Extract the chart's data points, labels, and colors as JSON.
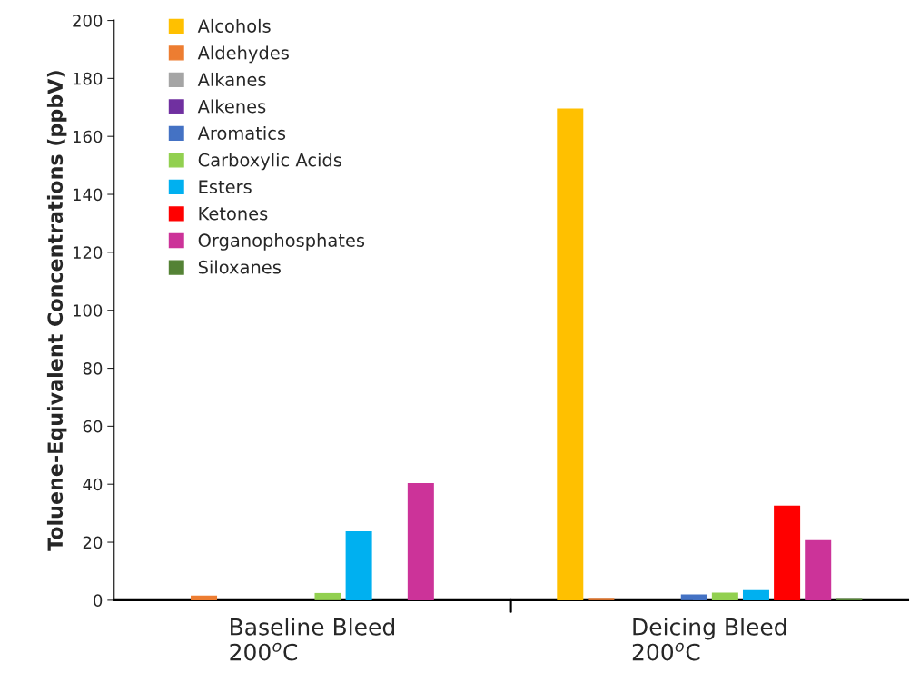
{
  "chart_data": {
    "type": "bar",
    "ylabel": "Toluene-Equivalent Concentrations (ppbV)",
    "categories": [
      "Baseline Bleed\n200$^{o}$C",
      "Deicing Bleed\n200$^{o}$C"
    ],
    "series": [
      {
        "name": "Alcohols",
        "color": "#ffc000",
        "values": [
          null,
          169.6
        ]
      },
      {
        "name": "Aldehydes",
        "color": "#ed7d31",
        "values": [
          1.6,
          0.5
        ]
      },
      {
        "name": "Alkanes",
        "color": "#a5a5a5",
        "values": [
          null,
          null
        ]
      },
      {
        "name": "Alkenes",
        "color": "#7030a0",
        "values": [
          null,
          null
        ]
      },
      {
        "name": "Aromatics",
        "color": "#4472c4",
        "values": [
          null,
          2.0
        ]
      },
      {
        "name": "Carboxylic Acids",
        "color": "#92d050",
        "values": [
          2.5,
          2.6
        ]
      },
      {
        "name": "Esters",
        "color": "#00b0f0",
        "values": [
          23.8,
          3.5
        ]
      },
      {
        "name": "Ketones",
        "color": "#ff0000",
        "values": [
          null,
          32.6
        ]
      },
      {
        "name": "Organophosphates",
        "color": "#cc3399",
        "values": [
          40.4,
          20.7
        ]
      },
      {
        "name": "Siloxanes",
        "color": "#548235",
        "values": [
          null,
          0.4
        ]
      }
    ],
    "ylim": [
      0,
      200
    ],
    "yticks": [
      0,
      20,
      40,
      60,
      80,
      100,
      120,
      140,
      160,
      180,
      200
    ],
    "grid": false,
    "legend": "top left"
  }
}
